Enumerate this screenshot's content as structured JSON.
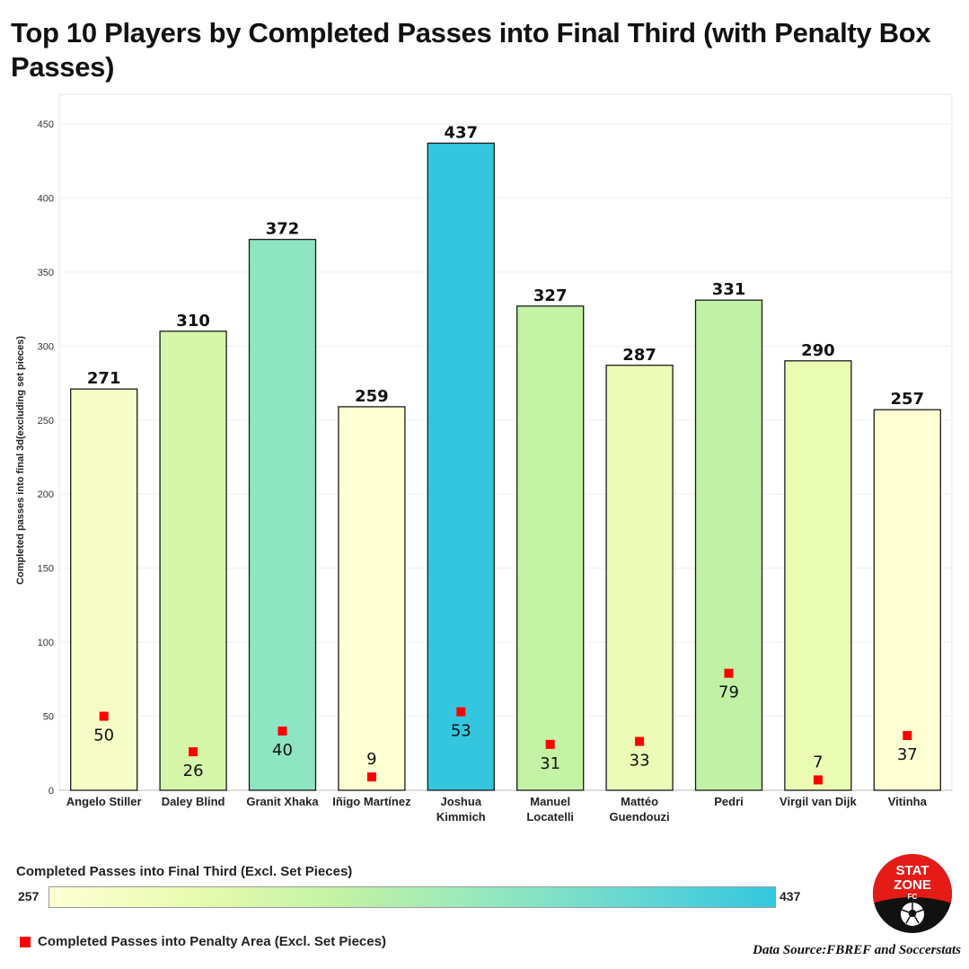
{
  "title": "Top 10 Players by Completed Passes into Final Third (with Penalty Box Passes)",
  "chart_data": {
    "type": "bar",
    "categories": [
      [
        "Angelo Stiller"
      ],
      [
        "Daley Blind"
      ],
      [
        "Granit Xhaka"
      ],
      [
        "Iñigo Martínez"
      ],
      [
        "Joshua",
        "Kimmich"
      ],
      [
        "Manuel",
        "Locatelli"
      ],
      [
        "Mattéo",
        "Guendouzi"
      ],
      [
        "Pedri"
      ],
      [
        "Virgil van Dijk"
      ],
      [
        "Vitinha"
      ]
    ],
    "series": [
      {
        "name": "Completed Passes into Final Third (Excl. Set Pieces)",
        "values": [
          271,
          310,
          372,
          259,
          437,
          327,
          287,
          331,
          290,
          257
        ]
      },
      {
        "name": "Completed Passes into Penalty Area (Excl. Set Pieces)",
        "values": [
          50,
          26,
          40,
          9,
          53,
          31,
          33,
          79,
          7,
          37
        ]
      }
    ],
    "ylabel": "Completed passes into final 3d(excluding set pieces)",
    "xlabel": "",
    "ylim": [
      0,
      470
    ],
    "yticks": [
      0,
      50,
      100,
      150,
      200,
      250,
      300,
      350,
      400,
      450
    ],
    "grid": true,
    "colorscale": {
      "min": 257,
      "max": 437,
      "colors": [
        "#ffffd4",
        "#e8fbb0",
        "#c2f2a4",
        "#96e8be",
        "#66d8d2",
        "#34c6df"
      ]
    },
    "marker_color": "#ff0000"
  },
  "legend": {
    "title": "Completed Passes into Final Third (Excl. Set Pieces)",
    "min_label": "257",
    "max_label": "437",
    "marker_label": "Completed Passes into Penalty Area (Excl. Set Pieces)"
  },
  "source": "Data Source:FBREF  and Soccerstats",
  "logo": {
    "line1": "STAT",
    "line2": "ZONE",
    "line3": "FC",
    "colors": [
      "#e41b17",
      "#111111"
    ]
  }
}
